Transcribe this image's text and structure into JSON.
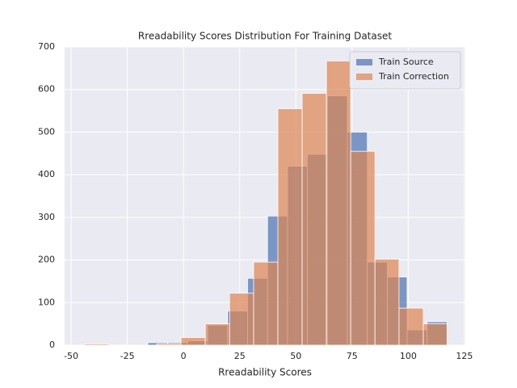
{
  "chart_data": {
    "type": "histogram",
    "title": "Rreadability Scores Distribution For Training Dataset",
    "x_label": "Rreadability Scores",
    "xlim": [
      -52.9,
      125.4
    ],
    "ylim": [
      0,
      700
    ],
    "xticks": [
      -50,
      -25,
      0,
      25,
      50,
      75,
      100,
      125
    ],
    "yticks": [
      0,
      100,
      200,
      300,
      400,
      500,
      600,
      700
    ],
    "grid": true,
    "legend": "upper right",
    "alpha": 0.7,
    "series": [
      {
        "name": "Train Source",
        "color": "#4c72b0",
        "bins": [
          -15.9,
          -7.0,
          1.9,
          10.7,
          19.6,
          28.5,
          37.4,
          46.3,
          55.1,
          64.0,
          72.9,
          81.8,
          90.7,
          99.5,
          108.4,
          117.3
        ],
        "values": [
          6,
          6,
          10,
          47,
          80,
          157,
          303,
          420,
          448,
          585,
          500,
          195,
          160,
          36,
          55
        ]
      },
      {
        "name": "Train Correction",
        "color": "#dd8452",
        "bins": [
          -44.2,
          -33.4,
          -22.7,
          -11.9,
          -1.1,
          9.7,
          20.5,
          31.2,
          42.0,
          52.8,
          63.6,
          74.4,
          85.2,
          95.9,
          106.7,
          117.3
        ],
        "values": [
          3,
          0,
          0,
          3,
          18,
          50,
          122,
          195,
          555,
          591,
          667,
          455,
          202,
          87,
          50
        ]
      }
    ]
  }
}
